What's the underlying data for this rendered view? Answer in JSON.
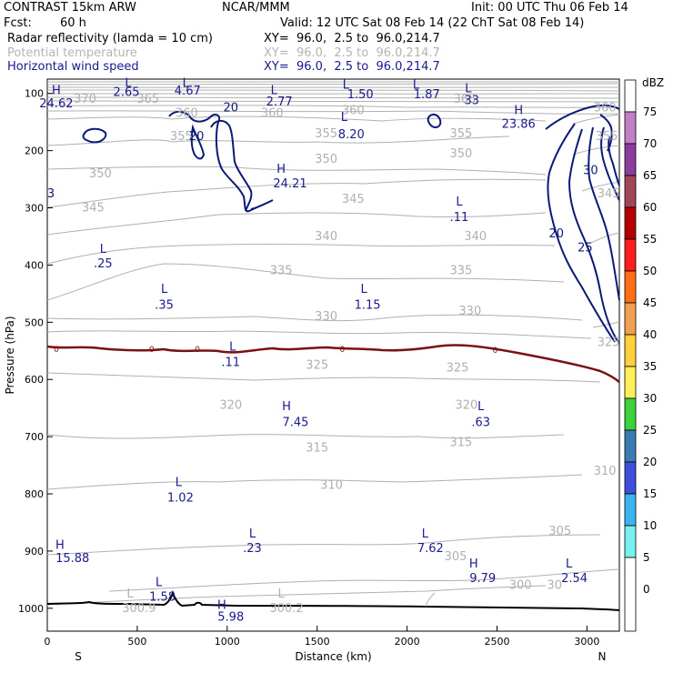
{
  "header": {
    "model": "CONTRAST 15km ARW",
    "org": "NCAR/MMM",
    "init": "Init: 00 UTC Thu 06 Feb 14",
    "fcst_label": "Fcst:",
    "fcst_value": "60 h",
    "valid": "Valid: 12 UTC Sat 08 Feb 14 (22 ChT Sat 08 Feb 14)",
    "field1": "Radar reflectivity (lamda = 10 cm)",
    "field1_xy": "XY=  96.0,  2.5 to  96.0,214.7",
    "field2": "Potential temperature",
    "field2_xy": "XY=  96.0,  2.5 to  96.0,214.7",
    "field3": "Horizontal wind speed",
    "field3_xy": "XY=  96.0,  2.5 to  96.0,214.7"
  },
  "colors": {
    "wind": "#0a1a78",
    "theta": "#b0b0b0",
    "freezing": "#7a1010",
    "terrain": "#000000",
    "label_blue": "#1a1a8c"
  },
  "chart_data": {
    "type": "contour",
    "title": "Radar reflectivity / Potential temperature / Horizontal wind speed cross section",
    "xlabel": "Distance (km)",
    "ylabel": "Pressure (hPa)",
    "xlim": [
      0,
      3180
    ],
    "ylim": [
      1040,
      75
    ],
    "x_ticks": [
      0,
      500,
      1000,
      1500,
      2000,
      2500,
      3000
    ],
    "y_ticks": [
      100,
      200,
      300,
      400,
      500,
      600,
      700,
      800,
      900,
      1000
    ],
    "endpoints": {
      "left": "S",
      "right": "N"
    },
    "colorbar": {
      "unit": "dBZ",
      "levels": [
        "75",
        "70",
        "65",
        "60",
        "55",
        "50",
        "45",
        "40",
        "35",
        "30",
        "25",
        "20",
        "15",
        "10",
        "5",
        "0"
      ],
      "colors": [
        "#ffffff",
        "#c080c8",
        "#8c3c9c",
        "#a04658",
        "#b40000",
        "#ff1e1e",
        "#ff6e14",
        "#f0a050",
        "#ffd03c",
        "#fff05a",
        "#3cd23c",
        "#3c7cb4",
        "#3c50dc",
        "#3cb4f0",
        "#78f0f0",
        "#ffffff"
      ]
    },
    "theta_labels": [
      {
        "text": "370",
        "x": 210,
        "p": 110
      },
      {
        "text": "365",
        "x": 560,
        "p": 110
      },
      {
        "text": "360",
        "x": 775,
        "p": 135
      },
      {
        "text": "360",
        "x": 1250,
        "p": 135
      },
      {
        "text": "360",
        "x": 1700,
        "p": 130
      },
      {
        "text": "365",
        "x": 2320,
        "p": 110
      },
      {
        "text": "355",
        "x": 745,
        "p": 175
      },
      {
        "text": "355",
        "x": 1550,
        "p": 170
      },
      {
        "text": "355",
        "x": 2300,
        "p": 170
      },
      {
        "text": "350",
        "x": 295,
        "p": 240
      },
      {
        "text": "350",
        "x": 1550,
        "p": 215
      },
      {
        "text": "350",
        "x": 2300,
        "p": 205
      },
      {
        "text": "345",
        "x": 255,
        "p": 300
      },
      {
        "text": "345",
        "x": 1700,
        "p": 285
      },
      {
        "text": "340",
        "x": 1550,
        "p": 350
      },
      {
        "text": "340",
        "x": 2380,
        "p": 350
      },
      {
        "text": "335",
        "x": 1300,
        "p": 410
      },
      {
        "text": "335",
        "x": 2300,
        "p": 410
      },
      {
        "text": "330",
        "x": 1550,
        "p": 490
      },
      {
        "text": "330",
        "x": 2350,
        "p": 480
      },
      {
        "text": "325",
        "x": 1500,
        "p": 575
      },
      {
        "text": "325",
        "x": 2280,
        "p": 580
      },
      {
        "text": "320",
        "x": 1020,
        "p": 645
      },
      {
        "text": "320",
        "x": 2330,
        "p": 645
      },
      {
        "text": "315",
        "x": 1500,
        "p": 720
      },
      {
        "text": "315",
        "x": 2300,
        "p": 710
      },
      {
        "text": "310",
        "x": 1580,
        "p": 785
      },
      {
        "text": "310",
        "x": 3100,
        "p": 760
      },
      {
        "text": "305",
        "x": 2850,
        "p": 865
      },
      {
        "text": "305",
        "x": 2270,
        "p": 910
      },
      {
        "text": "300",
        "x": 2630,
        "p": 960
      },
      {
        "text": "30",
        "x": 2820,
        "p": 960
      }
    ],
    "theta_right_labels": [
      {
        "text": "360",
        "x": 3100,
        "p": 125
      },
      {
        "text": "355",
        "x": 3110,
        "p": 175
      },
      {
        "text": "345",
        "x": 3120,
        "p": 275
      },
      {
        "text": "325",
        "x": 3120,
        "p": 535
      }
    ],
    "wind_labels": [
      {
        "text": "20",
        "x": 1020,
        "p": 125
      },
      {
        "text": "20",
        "x": 830,
        "p": 175
      },
      {
        "text": "20",
        "x": 2830,
        "p": 345
      },
      {
        "text": "25",
        "x": 2990,
        "p": 370
      },
      {
        "text": "30",
        "x": 3020,
        "p": 235
      },
      {
        "text": "3",
        "x": 20,
        "p": 275
      }
    ],
    "freezing_label": "0",
    "extrema": [
      {
        "type": "H",
        "value": "24.62",
        "x": 50,
        "p": 95,
        "lx": 50,
        "lp": 118
      },
      {
        "type": "L",
        "value": "2.65",
        "x": 450,
        "p": 82,
        "lx": 440,
        "lp": 98
      },
      {
        "type": "L",
        "value": "4.67",
        "x": 770,
        "p": 82,
        "lx": 780,
        "lp": 96
      },
      {
        "type": "L",
        "value": "2.77",
        "x": 1260,
        "p": 95,
        "lx": 1290,
        "lp": 115
      },
      {
        "type": "L",
        "value": "1.50",
        "x": 1660,
        "p": 85,
        "lx": 1740,
        "lp": 102
      },
      {
        "type": "L",
        "value": "1.87",
        "x": 2050,
        "p": 85,
        "lx": 2110,
        "lp": 102
      },
      {
        "type": "L",
        "value": "33",
        "x": 2340,
        "p": 92,
        "lx": 2360,
        "lp": 112
      },
      {
        "type": "L",
        "value": "8.20",
        "x": 1650,
        "p": 142,
        "lx": 1690,
        "lp": 172
      },
      {
        "type": "H",
        "value": "23.86",
        "x": 2620,
        "p": 130,
        "lx": 2620,
        "lp": 154
      },
      {
        "type": "H",
        "value": "24.21",
        "x": 1300,
        "p": 232,
        "lx": 1350,
        "lp": 258
      },
      {
        "type": "L",
        "value": ".11",
        "x": 2290,
        "p": 290,
        "lx": 2290,
        "lp": 317
      },
      {
        "type": "L",
        "value": ".25",
        "x": 310,
        "p": 372,
        "lx": 310,
        "lp": 398
      },
      {
        "type": "L",
        "value": ".35",
        "x": 650,
        "p": 442,
        "lx": 650,
        "lp": 470
      },
      {
        "type": "L",
        "value": "1.15",
        "x": 1760,
        "p": 442,
        "lx": 1780,
        "lp": 470
      },
      {
        "type": "L",
        "value": ".11",
        "x": 1030,
        "p": 543,
        "lx": 1020,
        "lp": 570
      },
      {
        "type": "H",
        "value": "7.45",
        "x": 1330,
        "p": 647,
        "lx": 1380,
        "lp": 675
      },
      {
        "type": "L",
        "value": ".63",
        "x": 2410,
        "p": 647,
        "lx": 2410,
        "lp": 675
      },
      {
        "type": "L",
        "value": "1.02",
        "x": 730,
        "p": 780,
        "lx": 740,
        "lp": 807
      },
      {
        "type": "L",
        "value": ".23",
        "x": 1140,
        "p": 870,
        "lx": 1140,
        "lp": 895
      },
      {
        "type": "L",
        "value": "7.62",
        "x": 2100,
        "p": 870,
        "lx": 2130,
        "lp": 895
      },
      {
        "type": "H",
        "value": "15.88",
        "x": 70,
        "p": 890,
        "lx": 140,
        "lp": 913
      },
      {
        "type": "H",
        "value": "9.79",
        "x": 2370,
        "p": 922,
        "lx": 2420,
        "lp": 948
      },
      {
        "type": "L",
        "value": "2.54",
        "x": 2900,
        "p": 922,
        "lx": 2930,
        "lp": 948
      },
      {
        "type": "L",
        "value": "1.58",
        "x": 620,
        "p": 955,
        "lx": 640,
        "lp": 980
      },
      {
        "type": "L",
        "value": "300.9",
        "x": 460,
        "p": 975,
        "lx": 510,
        "lp": 1000
      },
      {
        "type": "L",
        "value": "300.2",
        "x": 1300,
        "p": 975,
        "lx": 1330,
        "lp": 1000
      },
      {
        "type": "H",
        "value": "5.98",
        "x": 970,
        "p": 995,
        "lx": 1020,
        "lp": 1015
      }
    ]
  }
}
